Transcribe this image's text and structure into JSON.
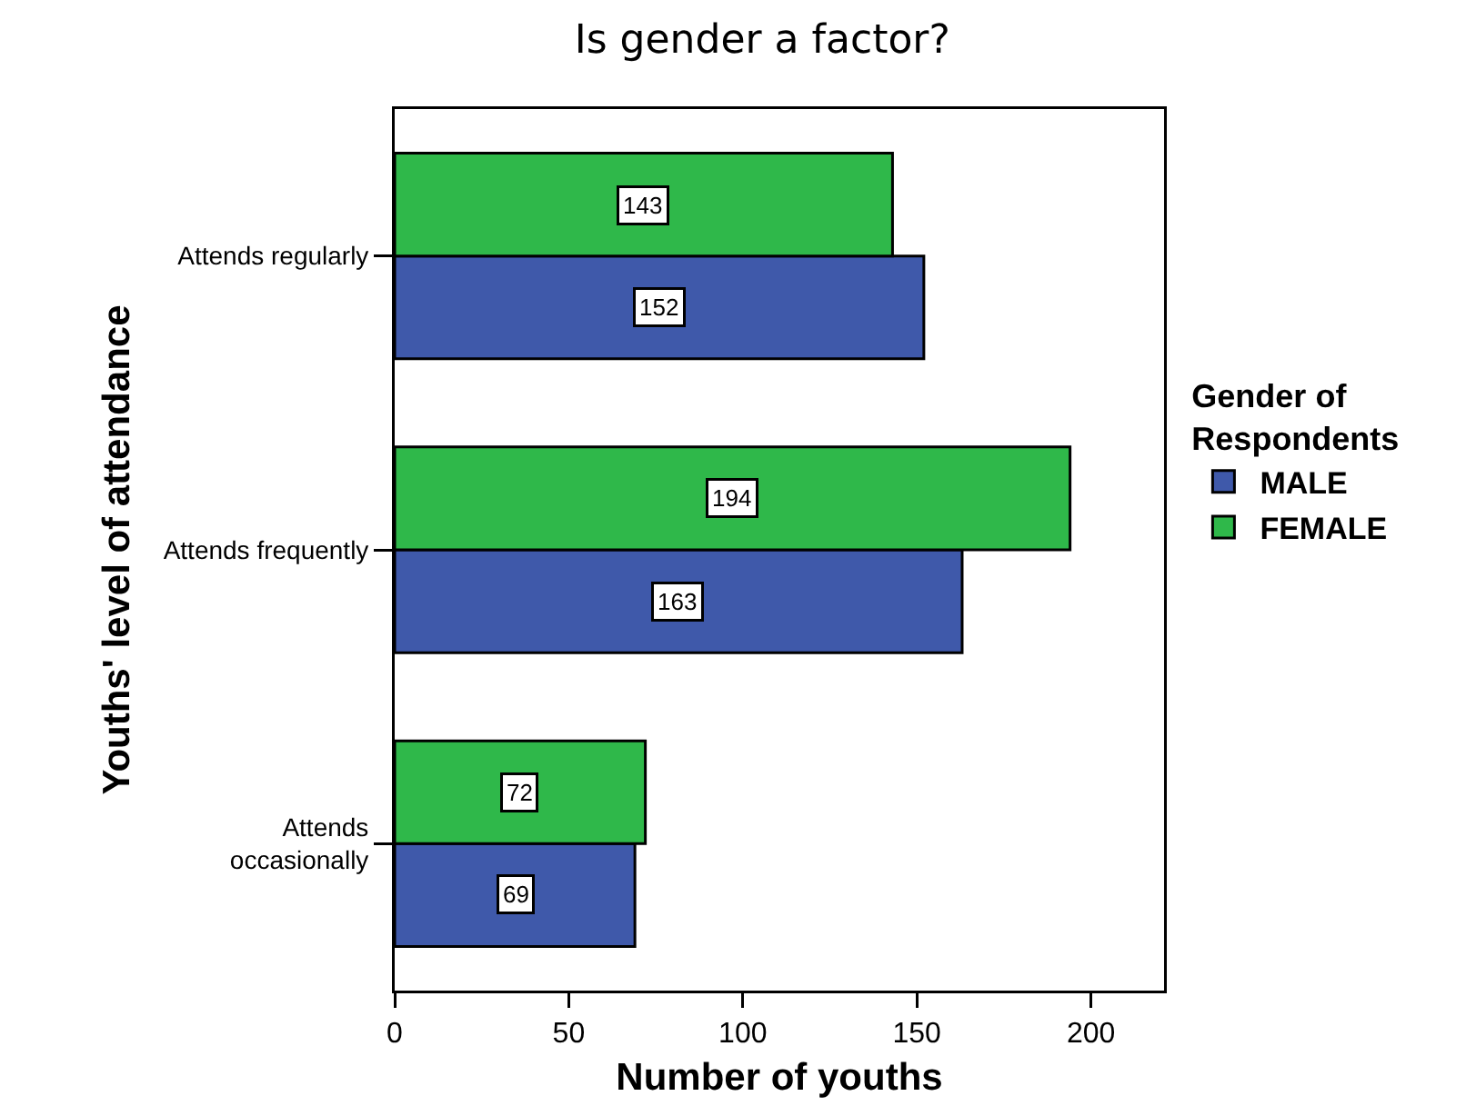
{
  "chart_data": {
    "type": "bar",
    "orientation": "horizontal",
    "title": "Is gender a factor?",
    "xlabel": "Number of youths",
    "ylabel": "Youths' level of attendance",
    "legend_title": "Gender of\nRespondents",
    "categories": [
      "Attends regularly",
      "Attends frequently",
      "Attends\noccasionally"
    ],
    "series": [
      {
        "name": "MALE",
        "color": "#3f59aa",
        "values": [
          152,
          163,
          69
        ]
      },
      {
        "name": "FEMALE",
        "color": "#2fb84a",
        "values": [
          143,
          194,
          72
        ]
      }
    ],
    "xlim": [
      0,
      221
    ],
    "xticks": [
      0,
      50,
      100,
      150,
      200
    ],
    "data_labels": true,
    "grid": false,
    "legend": "right"
  }
}
